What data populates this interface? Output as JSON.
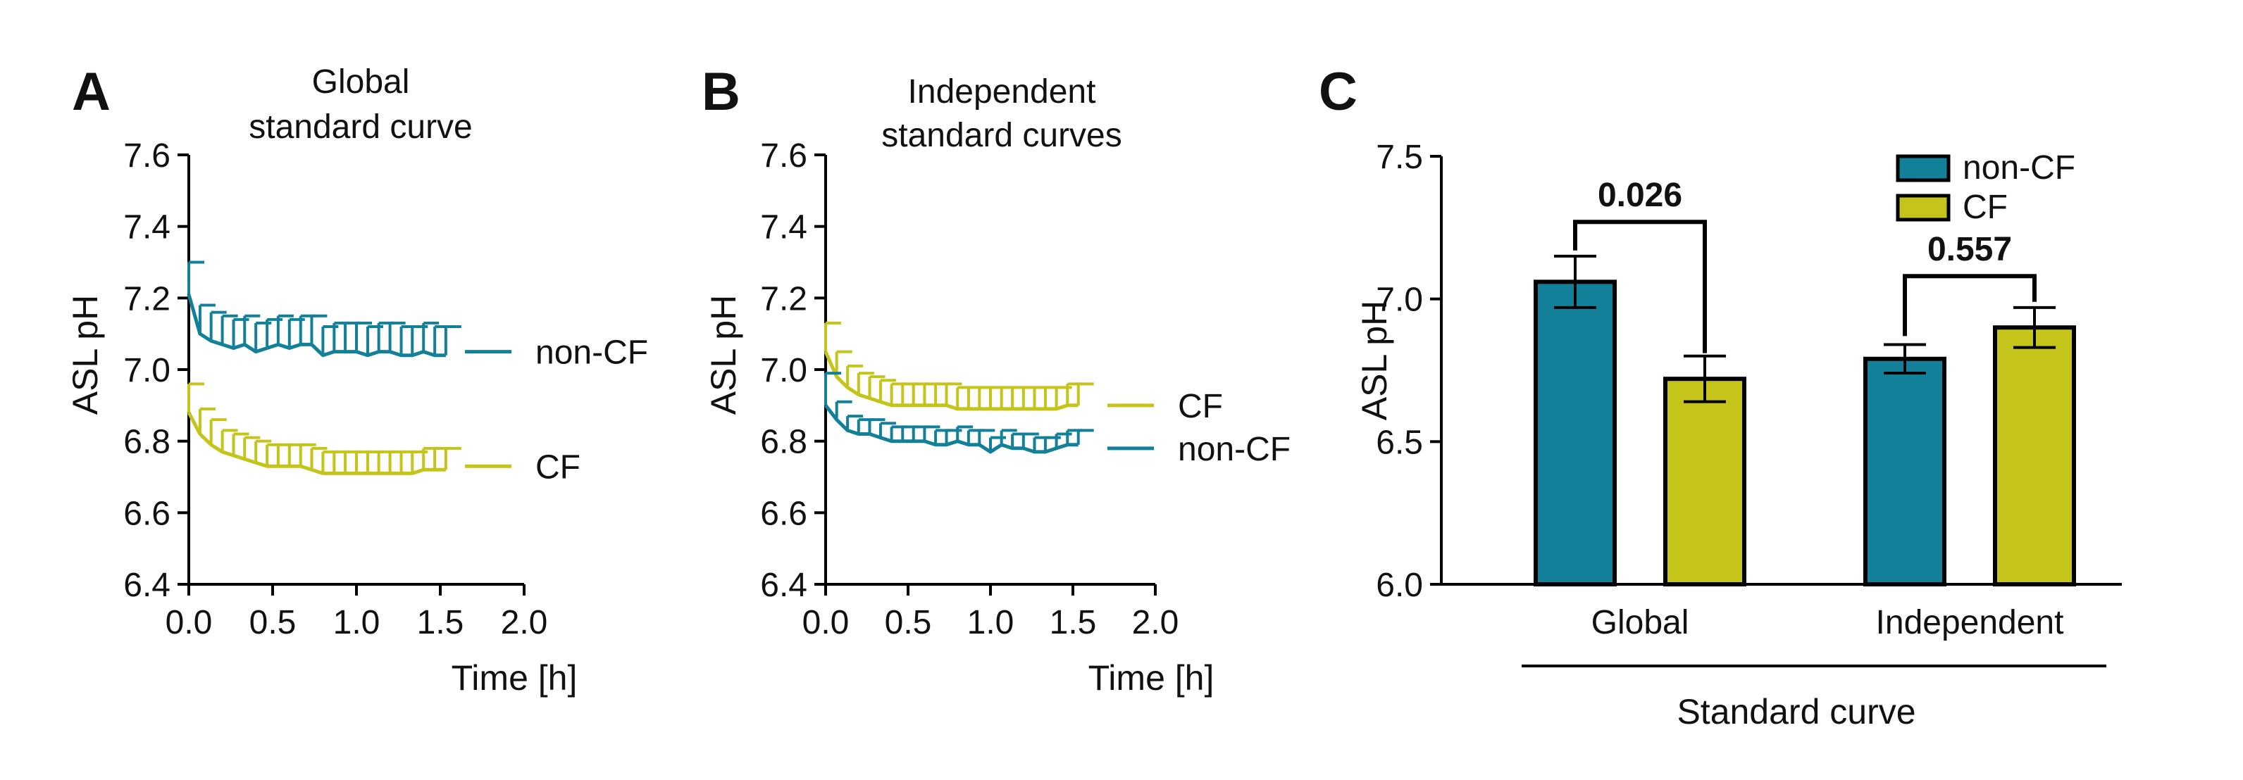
{
  "colors": {
    "non_cf": "#13809A",
    "cf": "#C4C41A"
  },
  "chart_data": [
    {
      "type": "line",
      "panel": "A",
      "title": [
        "Global",
        "standard curve"
      ],
      "xlabel": "Time [h]",
      "ylabel": "ASL pH",
      "xlim": [
        0,
        2.0
      ],
      "ylim": [
        6.4,
        7.6
      ],
      "xticks": [
        "0.0",
        "0.5",
        "1.0",
        "1.5",
        "2.0"
      ],
      "yticks": [
        "6.4",
        "6.6",
        "6.8",
        "7.0",
        "7.2",
        "7.4",
        "7.6"
      ],
      "series": [
        {
          "name": "non-CF",
          "color_key": "non_cf",
          "err_dir": "up",
          "x": [
            0,
            0.067,
            0.133,
            0.2,
            0.267,
            0.333,
            0.4,
            0.467,
            0.533,
            0.6,
            0.667,
            0.733,
            0.8,
            0.867,
            0.933,
            1.0,
            1.067,
            1.133,
            1.2,
            1.267,
            1.333,
            1.4,
            1.467,
            1.533
          ],
          "y": [
            7.21,
            7.1,
            7.08,
            7.07,
            7.06,
            7.07,
            7.05,
            7.06,
            7.07,
            7.06,
            7.07,
            7.07,
            7.04,
            7.05,
            7.05,
            7.05,
            7.04,
            7.05,
            7.05,
            7.04,
            7.04,
            7.05,
            7.04,
            7.04
          ],
          "err": [
            0.09,
            0.08,
            0.08,
            0.08,
            0.08,
            0.08,
            0.08,
            0.08,
            0.08,
            0.08,
            0.08,
            0.08,
            0.08,
            0.08,
            0.08,
            0.08,
            0.08,
            0.08,
            0.08,
            0.08,
            0.08,
            0.08,
            0.08,
            0.08
          ]
        },
        {
          "name": "CF",
          "color_key": "cf",
          "err_dir": "up",
          "x": [
            0,
            0.067,
            0.133,
            0.2,
            0.267,
            0.333,
            0.4,
            0.467,
            0.533,
            0.6,
            0.667,
            0.733,
            0.8,
            0.867,
            0.933,
            1.0,
            1.067,
            1.133,
            1.2,
            1.267,
            1.333,
            1.4,
            1.467,
            1.533
          ],
          "y": [
            6.88,
            6.82,
            6.79,
            6.77,
            6.76,
            6.75,
            6.74,
            6.73,
            6.73,
            6.73,
            6.73,
            6.72,
            6.71,
            6.71,
            6.71,
            6.71,
            6.71,
            6.71,
            6.71,
            6.71,
            6.71,
            6.72,
            6.72,
            6.72
          ],
          "err": [
            0.08,
            0.07,
            0.07,
            0.06,
            0.06,
            0.06,
            0.06,
            0.06,
            0.06,
            0.06,
            0.06,
            0.06,
            0.06,
            0.06,
            0.06,
            0.06,
            0.06,
            0.06,
            0.06,
            0.06,
            0.06,
            0.06,
            0.06,
            0.06
          ]
        }
      ],
      "legend": [
        {
          "label": "non-CF",
          "color_key": "non_cf",
          "value": 7.05
        },
        {
          "label": "CF",
          "color_key": "cf",
          "value": 6.73
        }
      ]
    },
    {
      "type": "line",
      "panel": "B",
      "title": [
        "Independent",
        "standard curves"
      ],
      "xlabel": "Time [h]",
      "ylabel": "ASL pH",
      "xlim": [
        0,
        2.0
      ],
      "ylim": [
        6.4,
        7.6
      ],
      "xticks": [
        "0.0",
        "0.5",
        "1.0",
        "1.5",
        "2.0"
      ],
      "yticks": [
        "6.4",
        "6.6",
        "6.8",
        "7.0",
        "7.2",
        "7.4",
        "7.6"
      ],
      "series": [
        {
          "name": "CF",
          "color_key": "cf",
          "err_dir": "up",
          "x": [
            0,
            0.067,
            0.133,
            0.2,
            0.267,
            0.333,
            0.4,
            0.467,
            0.533,
            0.6,
            0.667,
            0.733,
            0.8,
            0.867,
            0.933,
            1.0,
            1.067,
            1.133,
            1.2,
            1.267,
            1.333,
            1.4,
            1.467,
            1.533
          ],
          "y": [
            7.05,
            6.98,
            6.95,
            6.93,
            6.92,
            6.91,
            6.9,
            6.9,
            6.9,
            6.9,
            6.9,
            6.9,
            6.89,
            6.89,
            6.89,
            6.89,
            6.89,
            6.89,
            6.89,
            6.89,
            6.89,
            6.89,
            6.9,
            6.9
          ],
          "err": [
            0.08,
            0.07,
            0.06,
            0.06,
            0.06,
            0.06,
            0.06,
            0.06,
            0.06,
            0.06,
            0.06,
            0.06,
            0.06,
            0.06,
            0.06,
            0.06,
            0.06,
            0.06,
            0.06,
            0.06,
            0.06,
            0.06,
            0.06,
            0.06
          ]
        },
        {
          "name": "non-CF",
          "color_key": "non_cf",
          "err_dir": "up",
          "x": [
            0,
            0.067,
            0.133,
            0.2,
            0.267,
            0.333,
            0.4,
            0.467,
            0.533,
            0.6,
            0.667,
            0.733,
            0.8,
            0.867,
            0.933,
            1.0,
            1.067,
            1.133,
            1.2,
            1.267,
            1.333,
            1.4,
            1.467,
            1.533
          ],
          "y": [
            6.9,
            6.86,
            6.83,
            6.82,
            6.82,
            6.81,
            6.8,
            6.8,
            6.8,
            6.8,
            6.79,
            6.79,
            6.8,
            6.79,
            6.79,
            6.77,
            6.79,
            6.78,
            6.78,
            6.77,
            6.77,
            6.78,
            6.79,
            6.79
          ],
          "err": [
            0.09,
            0.05,
            0.04,
            0.04,
            0.04,
            0.04,
            0.04,
            0.04,
            0.04,
            0.04,
            0.04,
            0.04,
            0.04,
            0.04,
            0.04,
            0.04,
            0.04,
            0.04,
            0.04,
            0.04,
            0.04,
            0.04,
            0.04,
            0.04
          ]
        }
      ],
      "legend": [
        {
          "label": "CF",
          "color_key": "cf",
          "value": 6.9
        },
        {
          "label": "non-CF",
          "color_key": "non_cf",
          "value": 6.78
        }
      ]
    },
    {
      "type": "bar",
      "panel": "C",
      "xlabel": "Standard curve",
      "ylabel": "ASL pH",
      "ylim": [
        6.0,
        7.5
      ],
      "yticks": [
        "6.0",
        "6.5",
        "7.0",
        "7.5"
      ],
      "categories": [
        "Global",
        "Independent"
      ],
      "series": [
        {
          "name": "non-CF",
          "color_key": "non_cf",
          "values": [
            7.06,
            6.79
          ],
          "errors": [
            0.09,
            0.05
          ]
        },
        {
          "name": "CF",
          "color_key": "cf",
          "values": [
            6.72,
            6.9
          ],
          "errors": [
            0.08,
            0.07
          ]
        }
      ],
      "significance": [
        {
          "category": "Global",
          "label": "0.026",
          "bracket_y": 7.27,
          "leg_bottoms": [
            7.17,
            6.81
          ]
        },
        {
          "category": "Independent",
          "label": "0.557",
          "bracket_y": 7.08,
          "leg_bottoms": [
            6.87,
            6.99
          ]
        }
      ],
      "legend": [
        {
          "label": "non-CF",
          "color_key": "non_cf"
        },
        {
          "label": "CF",
          "color_key": "cf"
        }
      ]
    }
  ]
}
